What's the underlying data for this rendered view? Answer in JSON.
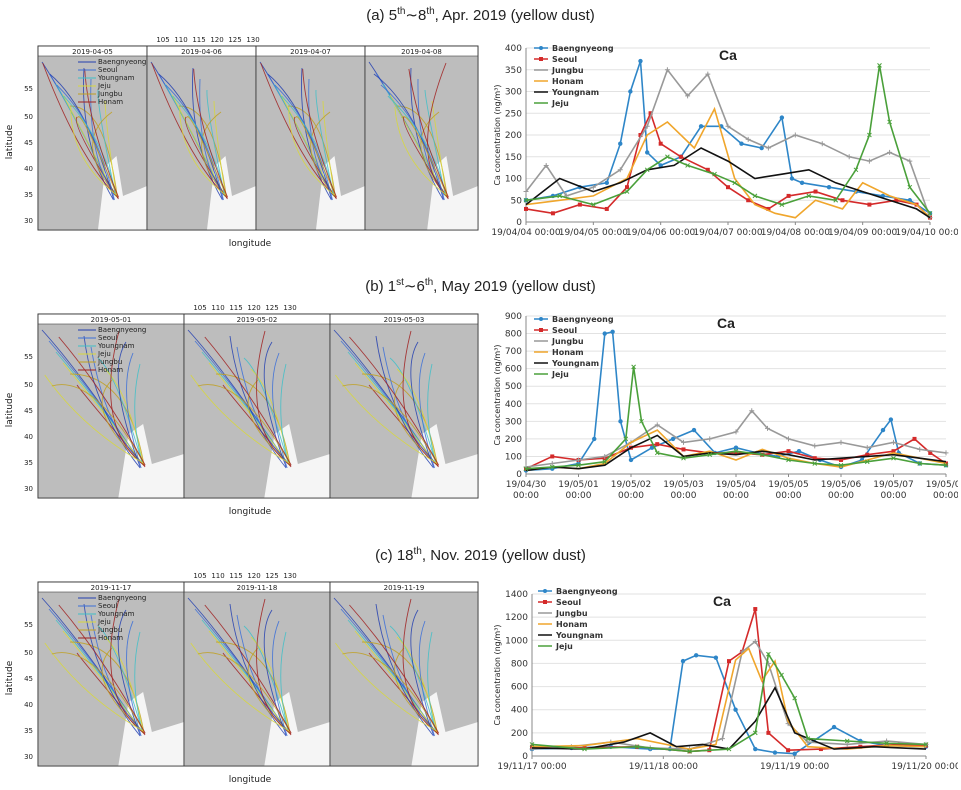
{
  "sections": [
    {
      "label": "(a) 5",
      "sup1": "th",
      "tilde": "∼8",
      "sup2": "th",
      "rest": ", Apr. 2019 (yellow dust)"
    },
    {
      "label": "(b) 1",
      "sup1": "st",
      "tilde": "∼6",
      "sup2": "th",
      "rest": ", May 2019 (yellow dust)"
    },
    {
      "label": "(c) 18",
      "sup1": "th",
      "tilde": "",
      "sup2": "",
      "rest": ", Nov. 2019 (yellow dust)"
    }
  ],
  "maps": [
    {
      "panels": [
        "2019-04-05",
        "2019-04-06",
        "2019-04-07",
        "2019-04-08"
      ],
      "top_ticks": [
        "105",
        "110",
        "115",
        "120",
        "125",
        "130"
      ],
      "lat_ticks": [
        "55",
        "50",
        "45",
        "40",
        "35",
        "30"
      ],
      "xlabel": "longitude",
      "ylabel": "latitude"
    },
    {
      "panels": [
        "2019-05-01",
        "2019-05-02",
        "2019-05-03"
      ],
      "top_ticks": [
        "105",
        "110",
        "115",
        "120",
        "125",
        "130"
      ],
      "lat_ticks": [
        "55",
        "50",
        "45",
        "40",
        "35",
        "30"
      ],
      "xlabel": "longitude",
      "ylabel": "latitude"
    },
    {
      "panels": [
        "2019-11-17",
        "2019-11-18",
        "2019-11-19"
      ],
      "top_ticks": [
        "105",
        "110",
        "115",
        "120",
        "125",
        "130"
      ],
      "lat_ticks": [
        "55",
        "50",
        "45",
        "40",
        "35",
        "30"
      ],
      "xlabel": "longitude",
      "ylabel": "latitude"
    }
  ],
  "map_legend": [
    "Baengnyeong",
    "Seoul",
    "Youngnam",
    "Jeju",
    "Jungbu",
    "Honam"
  ],
  "chart_data": [
    {
      "type": "line",
      "title": "Ca",
      "ylabel": "Ca concentration (ng/m³)",
      "ylim": [
        0,
        400
      ],
      "yticks": [
        0,
        50,
        100,
        150,
        200,
        250,
        300,
        350,
        400
      ],
      "xlim": [
        0,
        6
      ],
      "xticks": [
        0,
        1,
        2,
        3,
        4,
        5,
        6
      ],
      "xticklabels": [
        "19/04/04 00:00",
        "19/04/05 00:00",
        "19/04/06 00:00",
        "19/04/07 00:00",
        "19/04/08 00:00",
        "19/04/09 00:00",
        "19/04/10 00:00"
      ],
      "series": [
        {
          "name": "Baengnyeong",
          "color": "#2e86c8",
          "marker": "circle",
          "x": [
            0,
            0.4,
            0.8,
            1.2,
            1.4,
            1.55,
            1.7,
            1.8,
            2.0,
            2.3,
            2.6,
            2.9,
            3.2,
            3.5,
            3.8,
            3.95,
            4.1,
            4.5,
            4.9,
            5.3,
            5.7,
            6.0
          ],
          "y": [
            50,
            60,
            80,
            90,
            180,
            300,
            370,
            160,
            130,
            150,
            220,
            220,
            180,
            170,
            240,
            100,
            90,
            80,
            70,
            60,
            50,
            20
          ]
        },
        {
          "name": "Seoul",
          "color": "#d42a2a",
          "marker": "square",
          "x": [
            0,
            0.4,
            0.8,
            1.2,
            1.5,
            1.7,
            1.85,
            2.0,
            2.3,
            2.7,
            3.0,
            3.3,
            3.6,
            3.9,
            4.3,
            4.7,
            5.1,
            5.5,
            5.8,
            6.0
          ],
          "y": [
            30,
            20,
            40,
            30,
            80,
            200,
            250,
            180,
            150,
            120,
            80,
            50,
            30,
            60,
            70,
            50,
            40,
            50,
            40,
            10
          ]
        },
        {
          "name": "Jungbu",
          "color": "#999999",
          "marker": "plus",
          "x": [
            0,
            0.3,
            0.6,
            1.0,
            1.4,
            1.8,
            2.1,
            2.4,
            2.7,
            3.0,
            3.3,
            3.6,
            4.0,
            4.4,
            4.8,
            5.1,
            5.4,
            5.7,
            6.0
          ],
          "y": [
            70,
            130,
            60,
            80,
            120,
            220,
            350,
            290,
            340,
            220,
            190,
            170,
            200,
            180,
            150,
            140,
            160,
            140,
            10
          ]
        },
        {
          "name": "Honam",
          "color": "#f0a62c",
          "marker": "none",
          "x": [
            0,
            0.5,
            1.0,
            1.5,
            1.8,
            2.1,
            2.5,
            2.8,
            3.1,
            3.4,
            3.7,
            4.0,
            4.3,
            4.7,
            5.0,
            5.4,
            5.8,
            6.0
          ],
          "y": [
            40,
            50,
            60,
            100,
            200,
            230,
            170,
            260,
            100,
            40,
            20,
            10,
            50,
            30,
            90,
            60,
            40,
            10
          ]
        },
        {
          "name": "Youngnam",
          "color": "#111111",
          "marker": "none",
          "x": [
            0,
            0.5,
            1.0,
            1.4,
            1.8,
            2.2,
            2.6,
            3.0,
            3.4,
            3.8,
            4.2,
            4.6,
            5.0,
            5.4,
            5.8,
            6.0
          ],
          "y": [
            40,
            100,
            70,
            90,
            120,
            130,
            170,
            140,
            100,
            110,
            120,
            90,
            70,
            50,
            30,
            10
          ]
        },
        {
          "name": "Jeju",
          "color": "#4aa03a",
          "marker": "cross",
          "x": [
            0,
            0.5,
            1.0,
            1.5,
            1.8,
            2.1,
            2.4,
            2.8,
            3.1,
            3.4,
            3.8,
            4.2,
            4.6,
            4.9,
            5.1,
            5.25,
            5.4,
            5.7,
            6.0
          ],
          "y": [
            50,
            60,
            40,
            70,
            120,
            150,
            130,
            110,
            90,
            60,
            40,
            60,
            50,
            120,
            200,
            360,
            230,
            80,
            20
          ]
        }
      ]
    },
    {
      "type": "line",
      "title": "Ca",
      "ylabel": "Ca concentration (ng/m³)",
      "ylim": [
        0,
        900
      ],
      "yticks": [
        0,
        100,
        200,
        300,
        400,
        500,
        600,
        700,
        800,
        900
      ],
      "xlim": [
        0,
        8
      ],
      "xticks": [
        0,
        1,
        2,
        3,
        4,
        5,
        6,
        7,
        8
      ],
      "xticklabels": [
        "19/04/30 00:00",
        "19/05/01 00:00",
        "19/05/02 00:00",
        "19/05/03 00:00",
        "19/05/04 00:00",
        "19/05/05 00:00",
        "19/05/06 00:00",
        "19/05/07 00:00",
        "19/05/08 00:00"
      ],
      "series": [
        {
          "name": "Baengnyeong",
          "color": "#2e86c8",
          "marker": "circle",
          "x": [
            0,
            0.5,
            1.0,
            1.3,
            1.5,
            1.65,
            1.8,
            2.0,
            2.4,
            2.8,
            3.2,
            3.6,
            4.0,
            4.4,
            4.8,
            5.2,
            5.6,
            6.0,
            6.4,
            6.8,
            6.95,
            7.1,
            7.5,
            8.0
          ],
          "y": [
            20,
            30,
            60,
            200,
            800,
            810,
            300,
            80,
            150,
            200,
            250,
            120,
            150,
            120,
            100,
            130,
            80,
            40,
            80,
            250,
            310,
            120,
            60,
            50
          ]
        },
        {
          "name": "Seoul",
          "color": "#d42a2a",
          "marker": "square",
          "x": [
            0,
            0.5,
            1.0,
            1.5,
            2.0,
            2.5,
            3.0,
            3.5,
            4.0,
            4.5,
            5.0,
            5.5,
            6.0,
            6.5,
            7.0,
            7.4,
            7.7,
            8.0
          ],
          "y": [
            30,
            100,
            80,
            90,
            150,
            170,
            140,
            120,
            120,
            110,
            130,
            90,
            80,
            110,
            130,
            200,
            120,
            60
          ]
        },
        {
          "name": "Jungbu",
          "color": "#999999",
          "marker": "plus",
          "x": [
            0,
            0.5,
            1.0,
            1.5,
            2.0,
            2.5,
            3.0,
            3.5,
            4.0,
            4.3,
            4.6,
            5.0,
            5.5,
            6.0,
            6.5,
            7.0,
            7.5,
            8.0
          ],
          "y": [
            40,
            60,
            80,
            100,
            180,
            280,
            180,
            200,
            240,
            360,
            260,
            200,
            160,
            180,
            150,
            180,
            140,
            120
          ]
        },
        {
          "name": "Honam",
          "color": "#f0a62c",
          "marker": "none",
          "x": [
            0,
            0.5,
            1.0,
            1.5,
            2.0,
            2.5,
            3.0,
            3.5,
            4.0,
            4.5,
            5.0,
            5.5,
            6.0,
            6.5,
            7.0,
            7.5,
            8.0
          ],
          "y": [
            20,
            40,
            30,
            60,
            180,
            250,
            100,
            130,
            80,
            140,
            90,
            60,
            40,
            80,
            120,
            90,
            60
          ]
        },
        {
          "name": "Youngnam",
          "color": "#111111",
          "marker": "none",
          "x": [
            0,
            0.5,
            1.0,
            1.5,
            2.0,
            2.5,
            3.0,
            3.5,
            4.0,
            4.5,
            5.0,
            5.5,
            6.0,
            6.5,
            7.0,
            7.5,
            8.0
          ],
          "y": [
            20,
            40,
            30,
            50,
            150,
            220,
            100,
            120,
            110,
            130,
            110,
            80,
            90,
            100,
            110,
            90,
            70
          ]
        },
        {
          "name": "Jeju",
          "color": "#4aa03a",
          "marker": "cross",
          "x": [
            0,
            0.5,
            1.0,
            1.5,
            1.9,
            2.05,
            2.2,
            2.5,
            3.0,
            3.5,
            4.0,
            4.5,
            5.0,
            5.5,
            6.0,
            6.5,
            7.0,
            7.5,
            8.0
          ],
          "y": [
            30,
            40,
            50,
            70,
            200,
            610,
            300,
            120,
            90,
            110,
            130,
            110,
            80,
            60,
            50,
            70,
            90,
            60,
            50
          ]
        }
      ]
    },
    {
      "type": "line",
      "title": "Ca",
      "ylabel": "Ca concentration (ng/m³)",
      "ylim": [
        0,
        1400
      ],
      "yticks": [
        0,
        200,
        400,
        600,
        800,
        1000,
        1200,
        1400
      ],
      "xlim": [
        0,
        3
      ],
      "xticks": [
        0,
        1,
        2,
        3
      ],
      "xticklabels": [
        "19/11/17 00:00",
        "19/11/18 00:00",
        "19/11/19 00:00",
        "19/11/20 00:00"
      ],
      "series": [
        {
          "name": "Baengnyeong",
          "color": "#2e86c8",
          "marker": "circle",
          "x": [
            0,
            0.3,
            0.6,
            0.9,
            1.05,
            1.15,
            1.25,
            1.4,
            1.55,
            1.7,
            1.85,
            2.0,
            2.3,
            2.5,
            2.7,
            3.0
          ],
          "y": [
            60,
            70,
            80,
            60,
            60,
            820,
            870,
            850,
            400,
            60,
            30,
            20,
            250,
            130,
            90,
            80
          ]
        },
        {
          "name": "Seoul",
          "color": "#d42a2a",
          "marker": "square",
          "x": [
            0,
            0.4,
            0.8,
            1.2,
            1.35,
            1.5,
            1.6,
            1.7,
            1.8,
            1.95,
            2.2,
            2.5,
            2.8,
            3.0
          ],
          "y": [
            80,
            70,
            80,
            40,
            50,
            820,
            900,
            1270,
            200,
            50,
            60,
            80,
            100,
            90
          ]
        },
        {
          "name": "Jungbu",
          "color": "#999999",
          "marker": "plus",
          "x": [
            0,
            0.3,
            0.6,
            0.9,
            1.2,
            1.45,
            1.6,
            1.7,
            1.8,
            1.95,
            2.1,
            2.4,
            2.7,
            3.0
          ],
          "y": [
            60,
            80,
            120,
            70,
            60,
            150,
            900,
            990,
            800,
            280,
            120,
            100,
            130,
            100
          ]
        },
        {
          "name": "Honam",
          "color": "#f0a62c",
          "marker": "none",
          "x": [
            0,
            0.4,
            0.8,
            1.2,
            1.4,
            1.55,
            1.65,
            1.75,
            1.85,
            1.95,
            2.1,
            2.4,
            2.7,
            3.0
          ],
          "y": [
            80,
            90,
            150,
            60,
            100,
            830,
            930,
            650,
            820,
            300,
            80,
            60,
            90,
            80
          ]
        },
        {
          "name": "Youngnam",
          "color": "#111111",
          "marker": "none",
          "x": [
            0,
            0.4,
            0.7,
            0.9,
            1.1,
            1.3,
            1.5,
            1.7,
            1.85,
            2.0,
            2.3,
            2.6,
            3.0
          ],
          "y": [
            70,
            60,
            120,
            200,
            80,
            100,
            60,
            300,
            590,
            200,
            60,
            80,
            60
          ]
        },
        {
          "name": "Jeju",
          "color": "#4aa03a",
          "marker": "cross",
          "x": [
            0,
            0.4,
            0.8,
            1.2,
            1.5,
            1.7,
            1.8,
            1.9,
            2.0,
            2.1,
            2.4,
            2.7,
            3.0
          ],
          "y": [
            100,
            60,
            80,
            40,
            60,
            200,
            880,
            700,
            500,
            150,
            130,
            110,
            100
          ]
        }
      ]
    }
  ]
}
